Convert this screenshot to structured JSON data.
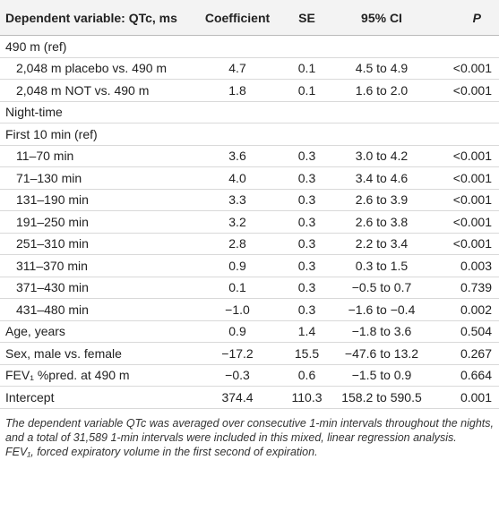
{
  "table": {
    "header": [
      "Dependent variable: QTc, ms",
      "Coefficient",
      "SE",
      "95% CI",
      "P"
    ],
    "rows": [
      [
        "490 m (ref)"
      ],
      [
        "2,048 m placebo vs. 490 m",
        "4.7",
        "0.1",
        "4.5 to 4.9",
        "<0.001"
      ],
      [
        "2,048 m NOT vs. 490 m",
        "1.8",
        "0.1",
        "1.6 to 2.0",
        "<0.001"
      ],
      [
        "Night-time"
      ],
      [
        "First 10 min (ref)"
      ],
      [
        "11–70 min",
        "3.6",
        "0.3",
        "3.0 to 4.2",
        "<0.001"
      ],
      [
        "71–130 min",
        "4.0",
        "0.3",
        "3.4 to 4.6",
        "<0.001"
      ],
      [
        "131–190 min",
        "3.3",
        "0.3",
        "2.6 to 3.9",
        "<0.001"
      ],
      [
        "191–250 min",
        "3.2",
        "0.3",
        "2.6 to 3.8",
        "<0.001"
      ],
      [
        "251–310 min",
        "2.8",
        "0.3",
        "2.2 to 3.4",
        "<0.001"
      ],
      [
        "311–370 min",
        "0.9",
        "0.3",
        "0.3 to 1.5",
        "0.003"
      ],
      [
        "371–430 min",
        "0.1",
        "0.3",
        "−0.5 to 0.7",
        "0.739"
      ],
      [
        "431–480 min",
        "−1.0",
        "0.3",
        "−1.6 to −0.4",
        "0.002"
      ],
      [
        "Age, years",
        "0.9",
        "1.4",
        "−1.8 to 3.6",
        "0.504"
      ],
      [
        "Sex, male vs. female",
        "−17.2",
        "15.5",
        "−47.6 to 13.2",
        "0.267"
      ],
      [
        "FEV₁ %pred. at 490 m",
        "−0.3",
        "0.6",
        "−1.5 to 0.9",
        "0.664"
      ],
      [
        "Intercept",
        "374.4",
        "110.3",
        "158.2 to 590.5",
        "0.001"
      ]
    ],
    "footnotes": [
      "The dependent variable QTc was averaged over consecutive 1-min intervals throughout the nights, and a total of 31,589 1-min intervals were included in this mixed, linear regression analysis.",
      "FEV₁, forced expiratory volume in the first second of expiration."
    ]
  }
}
